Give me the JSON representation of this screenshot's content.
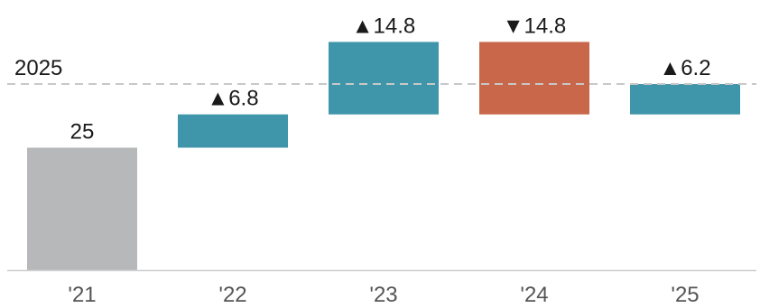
{
  "chart_data": {
    "type": "bar",
    "subtype": "waterfall",
    "categories": [
      "'21",
      "'22",
      "'23",
      "'24",
      "'25"
    ],
    "bars": [
      {
        "category": "'21",
        "start": 0,
        "end": 25,
        "kind": "base",
        "label": "25"
      },
      {
        "category": "'22",
        "start": 25,
        "end": 31.8,
        "kind": "increase",
        "label": "▲6.8"
      },
      {
        "category": "'23",
        "start": 31.8,
        "end": 46.6,
        "kind": "increase",
        "label": "▲14.8"
      },
      {
        "category": "'24",
        "start": 46.6,
        "end": 31.8,
        "kind": "decrease",
        "label": "▼14.8"
      },
      {
        "category": "'25",
        "start": 31.8,
        "end": 38,
        "kind": "increase",
        "label": "▲6.2"
      }
    ],
    "reference_line": {
      "value": 38,
      "label": "2025",
      "style": "dashed"
    },
    "ylim": [
      0,
      50
    ],
    "grid": false,
    "legend": "none",
    "colors": {
      "base": "#b7b8ba",
      "increase": "#3f95a9",
      "decrease": "#c8674a",
      "reference": "#c8c8c8",
      "axis": "#cfcfcf"
    }
  }
}
